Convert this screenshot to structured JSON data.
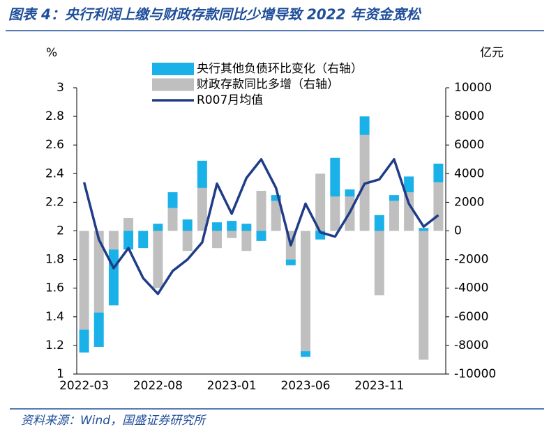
{
  "title": "图表 4：央行利润上缴与财政存款同比少增导致 2022 年资金宽松",
  "source": "资料来源：Wind，国盛证券研究所",
  "chart_data": {
    "type": "bar-line",
    "y_label": "%",
    "y2_label": "亿元",
    "categories": [
      "2022-03",
      null,
      null,
      null,
      null,
      "2022-08",
      null,
      null,
      null,
      null,
      "2023-01",
      null,
      null,
      null,
      null,
      "2023-06",
      null,
      null,
      null,
      null,
      "2023-11",
      null,
      null,
      null,
      null
    ],
    "series": [
      {
        "name": "央行其他负债环比变化（右轴）",
        "color": "#1ab0e8",
        "axis": "y2",
        "type": "bar",
        "values": [
          -1600,
          -2400,
          -3900,
          -1300,
          -1200,
          500,
          1100,
          800,
          1900,
          600,
          700,
          500,
          -700,
          400,
          -400,
          -400,
          -600,
          2700,
          500,
          1300,
          1100,
          400,
          1100,
          200,
          1300
        ]
      },
      {
        "name": "财政存款同比多增（右轴）",
        "color": "#bfbfbf",
        "axis": "y2",
        "type": "bar",
        "values": [
          -6900,
          -5700,
          -1300,
          900,
          0,
          -4000,
          1600,
          -1400,
          3000,
          -1200,
          -500,
          -1400,
          2800,
          2100,
          -2000,
          -8400,
          4000,
          2400,
          2400,
          6700,
          -4500,
          2100,
          2700,
          -9000,
          3400
        ]
      },
      {
        "name": "R007月均值",
        "color": "#1f3c88",
        "axis": "y",
        "type": "line",
        "values": [
          2.34,
          1.94,
          1.74,
          1.88,
          1.67,
          1.56,
          1.72,
          1.8,
          1.92,
          2.33,
          2.12,
          2.37,
          2.5,
          2.3,
          1.9,
          2.19,
          1.99,
          1.96,
          2.13,
          2.33,
          2.36,
          2.5,
          2.19,
          2.03,
          2.11
        ]
      }
    ],
    "ylim": [
      1,
      3
    ],
    "yticks": [
      1,
      1.2,
      1.4,
      1.6,
      1.8,
      2,
      2.2,
      2.4,
      2.6,
      2.8,
      3
    ],
    "y2lim": [
      -10000,
      10000
    ],
    "y2ticks": [
      -10000,
      -8000,
      -6000,
      -4000,
      -2000,
      0,
      2000,
      4000,
      6000,
      8000,
      10000
    ]
  }
}
